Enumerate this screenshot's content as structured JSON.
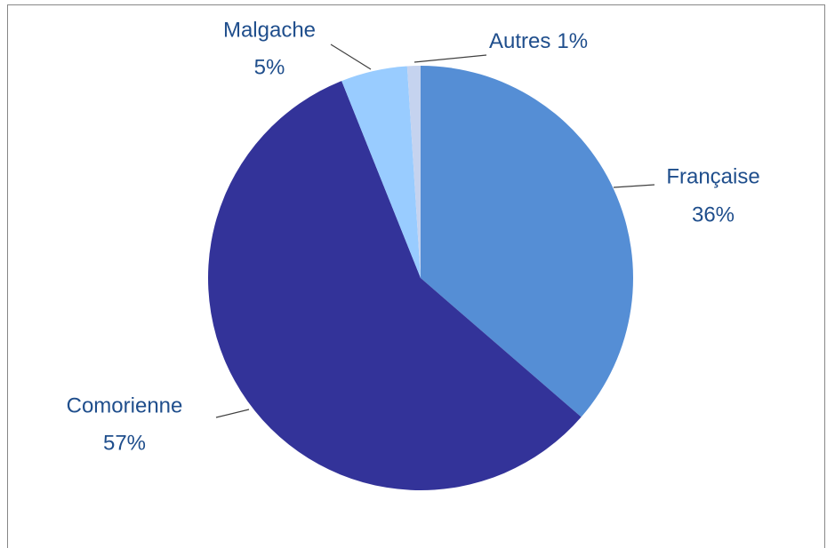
{
  "chart_data": {
    "type": "pie",
    "categories": [
      "Française",
      "Comorienne",
      "Malgache",
      "Autres"
    ],
    "values": [
      36,
      57,
      5,
      1
    ],
    "value_labels": [
      "36%",
      "57%",
      "5%",
      "1%"
    ],
    "colors": [
      "#558ed5",
      "#333399",
      "#99ccff",
      "#c5d3ef"
    ]
  }
}
